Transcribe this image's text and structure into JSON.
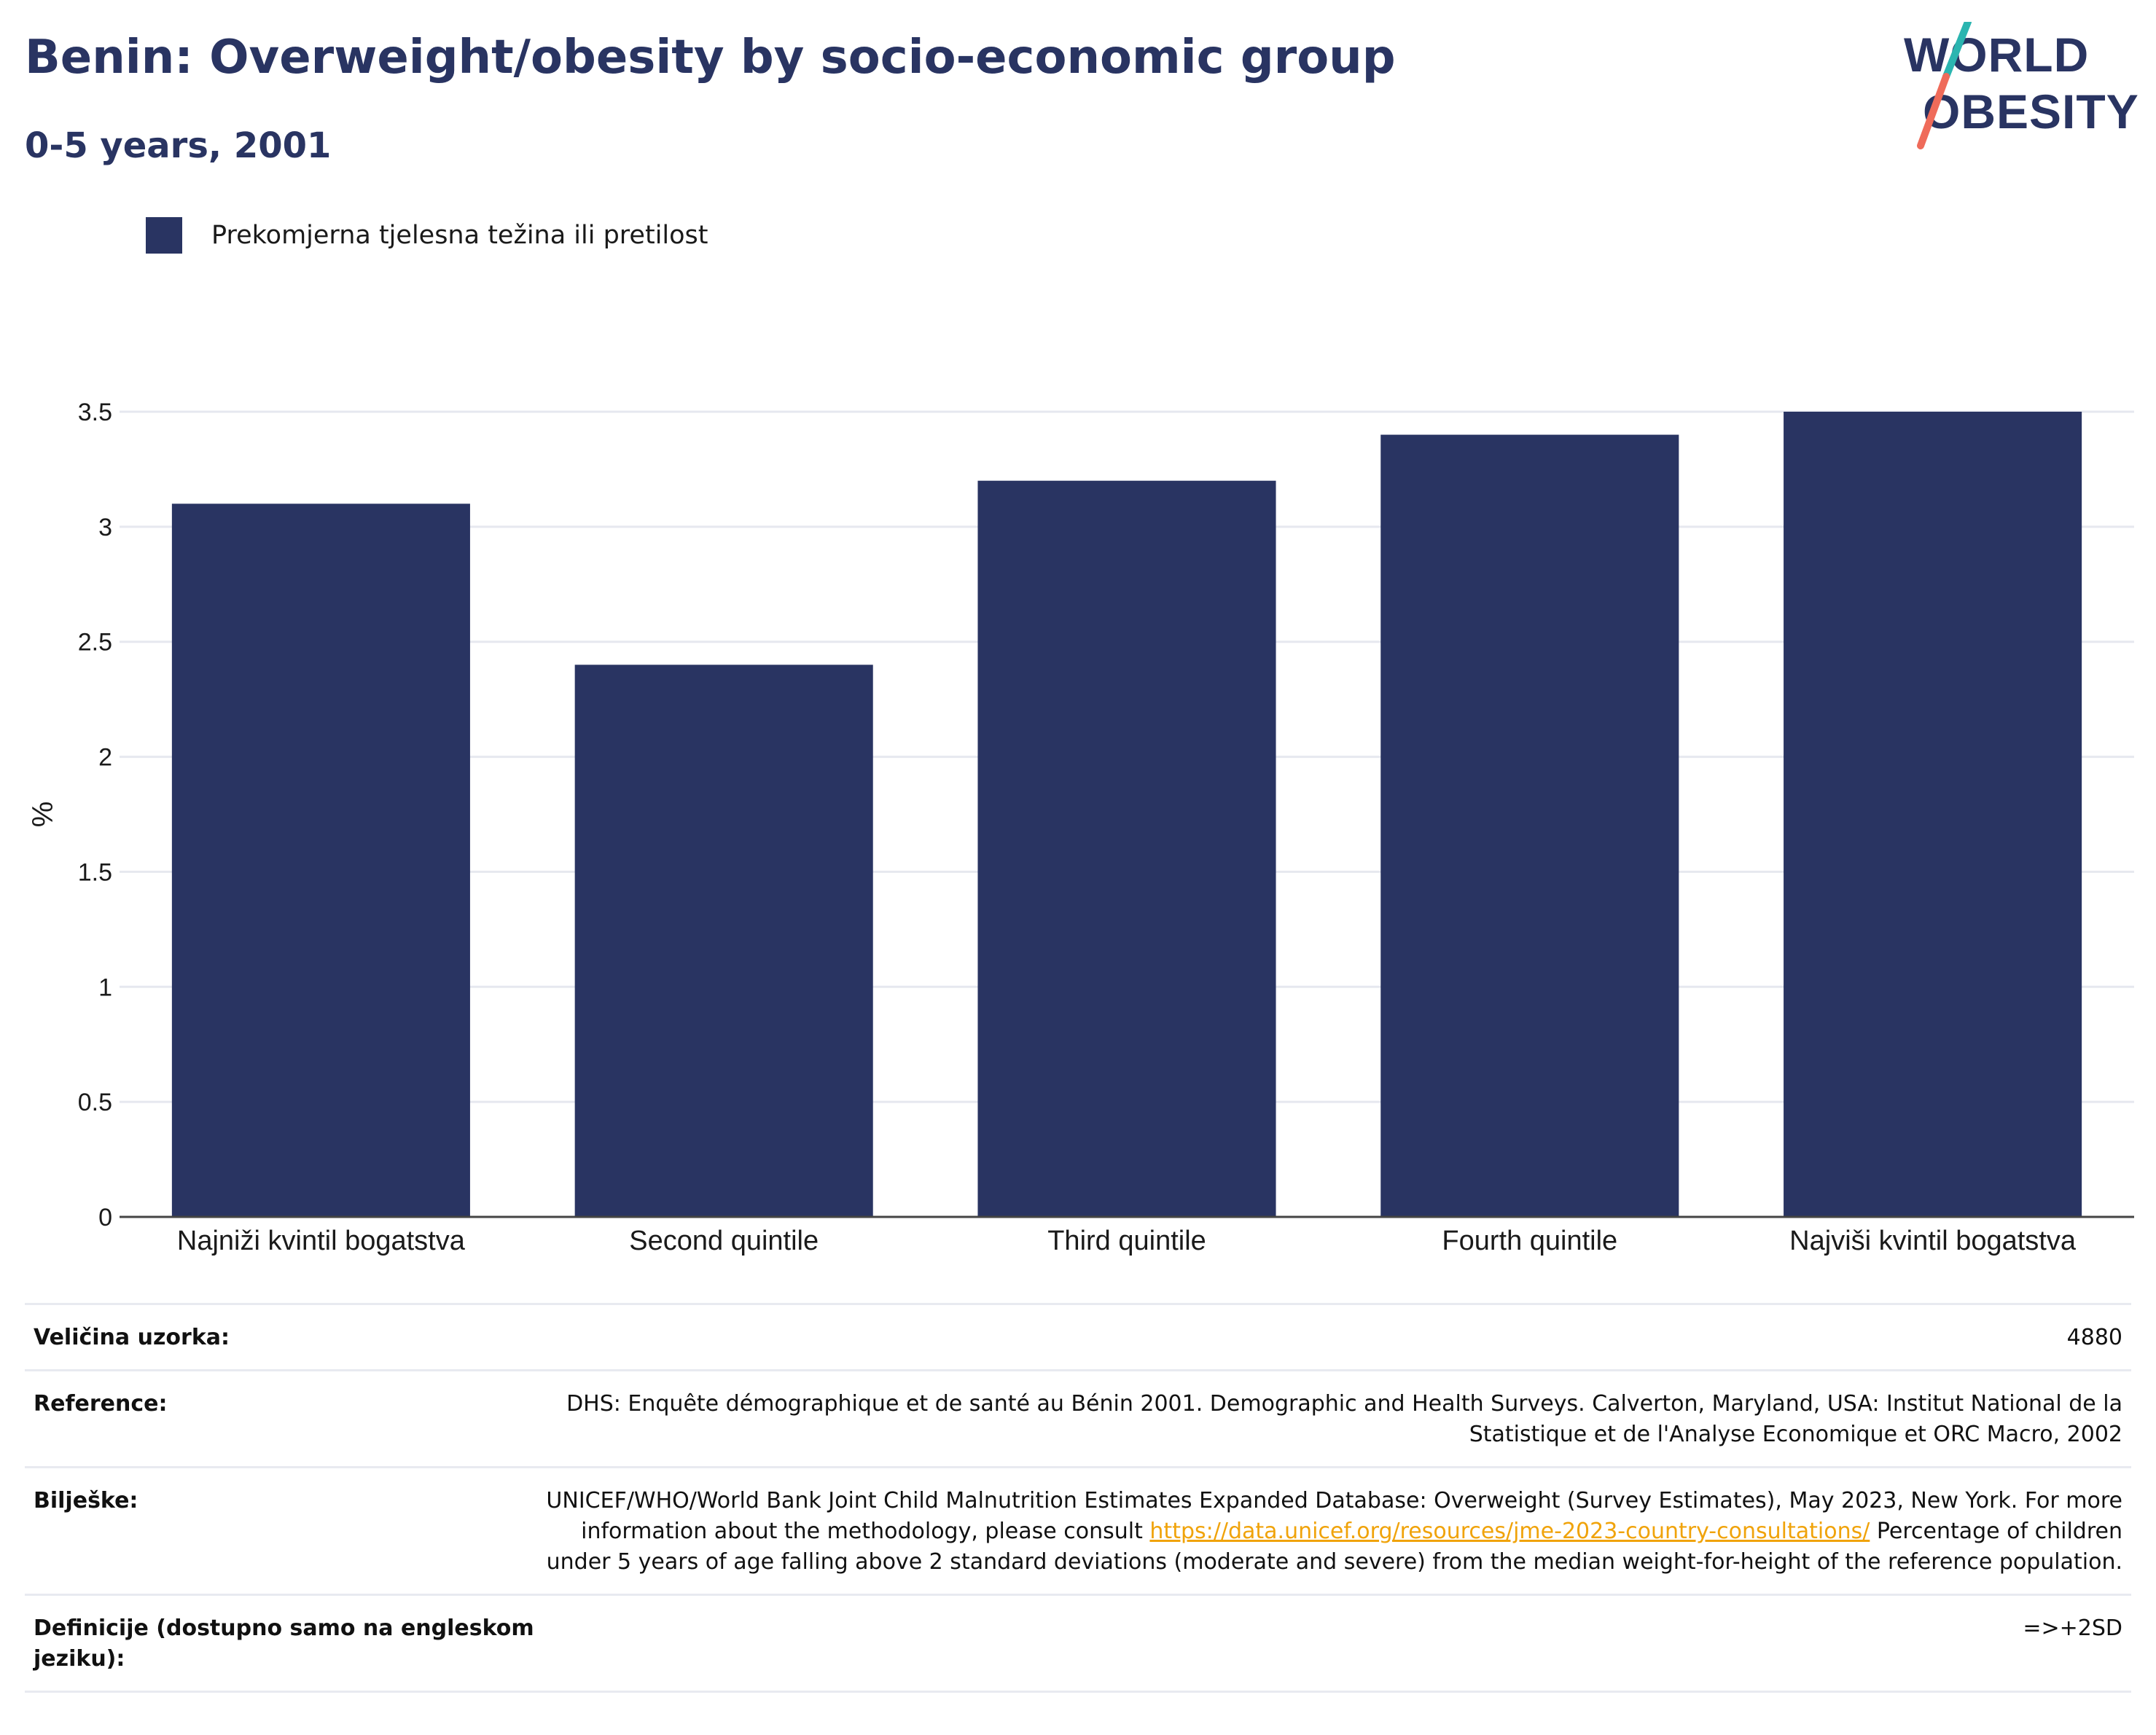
{
  "header": {
    "title": "Benin: Overweight/obesity by socio-economic group",
    "subtitle": "0-5 years, 2001"
  },
  "logo": {
    "line1": "WORLD",
    "line2": "OBESITY",
    "colors": {
      "text": "#293462",
      "slash_top": "#2bb5b0",
      "slash_bottom": "#ef6b5a"
    }
  },
  "legend": {
    "label": "Prekomjerna tjelesna težina ili pretilost",
    "color": "#293462"
  },
  "chart_data": {
    "type": "bar",
    "categories": [
      "Najniži kvintil bogatstva",
      "Second quintile",
      "Third quintile",
      "Fourth quintile",
      "Najviši kvintil bogatstva"
    ],
    "series": [
      {
        "name": "Prekomjerna tjelesna težina ili pretilost",
        "values": [
          3.1,
          2.4,
          3.2,
          3.4,
          3.5
        ],
        "color": "#293462"
      }
    ],
    "ylabel": "%",
    "xlabel": "",
    "ylim": [
      0,
      3.5
    ],
    "yticks": [
      "0",
      "0.5",
      "1",
      "1.5",
      "2",
      "2.5",
      "3",
      "3.5"
    ],
    "grid": true,
    "legend_position": "top-left"
  },
  "footer": {
    "sample_label": "Veličina uzorka:",
    "sample_value": "4880",
    "reference_label": "Reference:",
    "reference_value": "DHS: Enquête démographique et de santé au Bénin 2001. Demographic and Health Surveys. Calverton, Maryland, USA: Institut National de la Statistique et de l'Analyse Economique et ORC Macro, 2002",
    "notes_label": "Bilješke:",
    "notes_text_before": "UNICEF/WHO/World Bank Joint Child Malnutrition Estimates Expanded Database: Overweight (Survey Estimates), May 2023, New York. For more information about the methodology, please consult",
    "notes_link": "https://data.unicef.org/resources/jme-2023-country-consultations/",
    "notes_text_after": "Percentage of children under 5 years of age falling above 2 standard deviations (moderate and severe) from the median weight-for-height of the reference population.",
    "definitions_label": "Definicije (dostupno samo na engleskom jeziku):",
    "definitions_value": "=>+2SD"
  }
}
